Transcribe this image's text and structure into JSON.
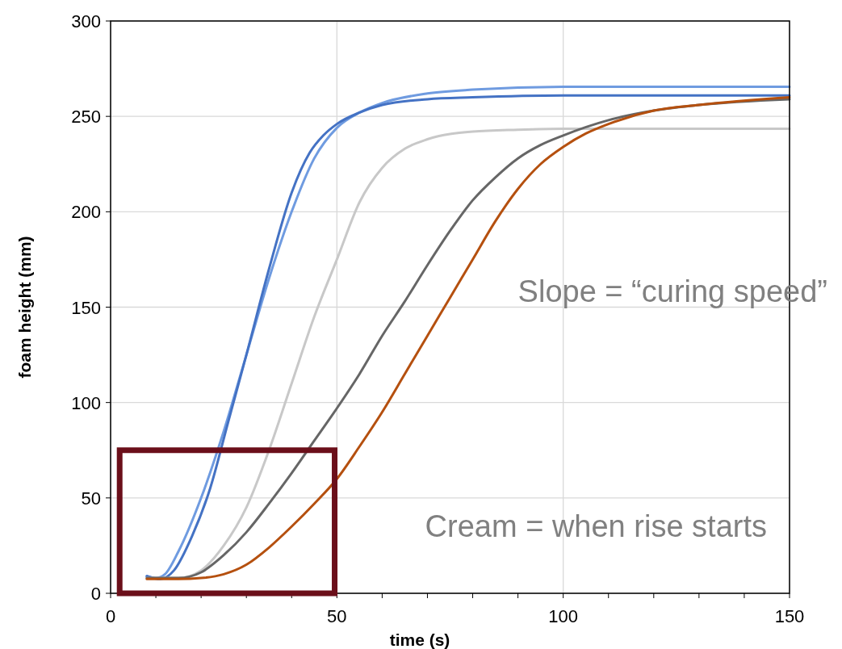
{
  "chart_data": {
    "type": "line",
    "xlabel": "time (s)",
    "ylabel": "foam height (mm)",
    "xlim": [
      0,
      150
    ],
    "ylim": [
      0,
      300
    ],
    "xticks": [
      0,
      {
        "value": 10,
        "label": null
      },
      {
        "value": 20,
        "label": null
      },
      {
        "value": 30,
        "label": null
      },
      {
        "value": 40,
        "label": null
      },
      50,
      {
        "value": 60,
        "label": null
      },
      {
        "value": 70,
        "label": null
      },
      {
        "value": 80,
        "label": null
      },
      {
        "value": 90,
        "label": null
      },
      100,
      {
        "value": 110,
        "label": null
      },
      {
        "value": 120,
        "label": null
      },
      {
        "value": 130,
        "label": null
      },
      {
        "value": 140,
        "label": null
      },
      150
    ],
    "yticks": [
      0,
      50,
      100,
      150,
      200,
      250,
      300
    ],
    "grid": true,
    "marker": "none",
    "line_style": "solid",
    "annotations": [
      "Slope = “curing speed”",
      "Cream = when rise starts"
    ],
    "series": [
      {
        "color": "#6f9be0",
        "x": [
          8,
          10,
          12,
          15,
          20,
          25,
          30,
          35,
          40,
          45,
          50,
          55,
          60,
          70,
          80,
          100,
          150
        ],
        "values": [
          9,
          8,
          10,
          22,
          50,
          85,
          125,
          165,
          200,
          228,
          244,
          252,
          257,
          262,
          264,
          265.5,
          265.5
        ]
      },
      {
        "color": "#4472c4",
        "x": [
          8,
          11,
          14,
          18,
          22,
          26,
          30,
          35,
          40,
          44,
          47,
          50,
          55,
          60,
          70,
          80,
          100,
          150
        ],
        "values": [
          9,
          7.5,
          12,
          30,
          55,
          90,
          125,
          170,
          210,
          231,
          240,
          246,
          252,
          256,
          259,
          260,
          261,
          261
        ]
      },
      {
        "color": "#c8c8c8",
        "x": [
          8,
          15,
          20,
          25,
          30,
          35,
          40,
          45,
          50,
          55,
          60,
          65,
          70,
          80,
          90,
          100,
          150
        ],
        "values": [
          8,
          8,
          12,
          25,
          45,
          75,
          110,
          145,
          175,
          205,
          223,
          233,
          238,
          242,
          243,
          243.5,
          243.5
        ]
      },
      {
        "color": "#666666",
        "x": [
          8,
          15,
          20,
          25,
          30,
          35,
          40,
          45,
          50,
          55,
          60,
          65,
          70,
          75,
          80,
          85,
          90,
          95,
          100,
          110,
          120,
          130,
          150
        ],
        "values": [
          8,
          8,
          11,
          20,
          32,
          47,
          63,
          80,
          97,
          115,
          135,
          153,
          172,
          190,
          206,
          218,
          228,
          235,
          240,
          248,
          253,
          256,
          259
        ]
      },
      {
        "color": "#b5500f",
        "x": [
          8,
          15,
          20,
          25,
          30,
          35,
          40,
          45,
          50,
          55,
          60,
          65,
          70,
          75,
          80,
          85,
          90,
          95,
          100,
          105,
          110,
          120,
          130,
          150
        ],
        "values": [
          7.5,
          7.5,
          8,
          10,
          15,
          24,
          35,
          47,
          60,
          77,
          95,
          115,
          135,
          155,
          175,
          195,
          212,
          225,
          234,
          241,
          246,
          253,
          256,
          260
        ]
      }
    ]
  }
}
